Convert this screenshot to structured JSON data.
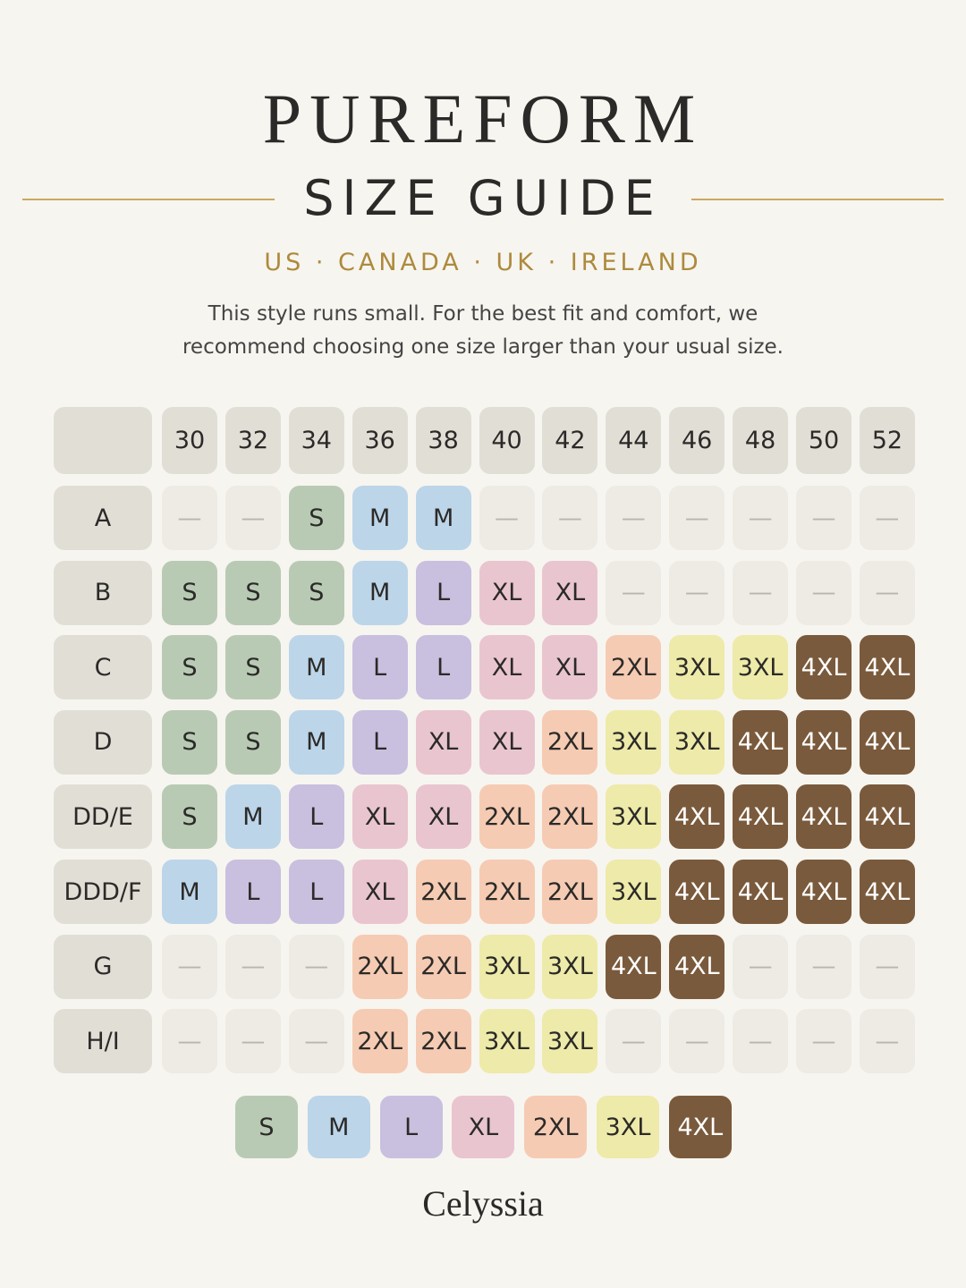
{
  "header": {
    "brand": "PUREFORM",
    "title": "SIZE GUIDE",
    "regions": "US · CANADA · UK · IRELAND",
    "note": [
      "This style runs small. For the best fit and comfort, we",
      "recommend choosing one size larger than your usual size."
    ]
  },
  "table": {
    "columns": [
      30,
      32,
      34,
      36,
      38,
      40,
      42,
      44,
      46,
      48,
      50,
      52
    ],
    "empty_color": "#eeebe4",
    "header_color": "#e1ded6",
    "rows": [
      {
        "label": "A",
        "cells": [
          "—",
          "—",
          "S",
          "M",
          "M",
          "—",
          "—",
          "—",
          "—",
          "—",
          "—",
          "—"
        ]
      },
      {
        "label": "B",
        "cells": [
          "S",
          "S",
          "S",
          "M",
          "L",
          "XL",
          "XL",
          "—",
          "—",
          "—",
          "—",
          "—"
        ]
      },
      {
        "label": "C",
        "cells": [
          "S",
          "S",
          "M",
          "L",
          "L",
          "XL",
          "XL",
          "2XL",
          "3XL",
          "3XL",
          "4XL",
          "4XL"
        ]
      },
      {
        "label": "D",
        "cells": [
          "S",
          "S",
          "M",
          "L",
          "XL",
          "XL",
          "2XL",
          "3XL",
          "3XL",
          "4XL",
          "4XL",
          "4XL"
        ]
      },
      {
        "label": "DD/E",
        "cells": [
          "S",
          "M",
          "L",
          "XL",
          "XL",
          "2XL",
          "2XL",
          "3XL",
          "4XL",
          "4XL",
          "4XL",
          "4XL"
        ]
      },
      {
        "label": "DDD/F",
        "cells": [
          "M",
          "L",
          "L",
          "XL",
          "2XL",
          "2XL",
          "2XL",
          "3XL",
          "4XL",
          "4XL",
          "4XL",
          "4XL"
        ]
      },
      {
        "label": "G",
        "cells": [
          "—",
          "—",
          "—",
          "2XL",
          "2XL",
          "3XL",
          "3XL",
          "4XL",
          "4XL",
          "—",
          "—",
          "—"
        ]
      },
      {
        "label": "H/I",
        "cells": [
          "—",
          "—",
          "—",
          "2XL",
          "2XL",
          "3XL",
          "3XL",
          "—",
          "—",
          "—",
          "—",
          "—"
        ]
      }
    ]
  },
  "legend": [
    {
      "label": "S",
      "color": "#b8cab4"
    },
    {
      "label": "M",
      "color": "#bcd5e9"
    },
    {
      "label": "L",
      "color": "#c9bfdf"
    },
    {
      "label": "XL",
      "color": "#e9c5d0"
    },
    {
      "label": "2XL",
      "color": "#f6cbb3"
    },
    {
      "label": "3XL",
      "color": "#eeeaa9"
    },
    {
      "label": "4XL",
      "color": "#7a5a3c",
      "text_color": "#ffffff"
    }
  ],
  "footer": {
    "brand": "Celyssia"
  }
}
